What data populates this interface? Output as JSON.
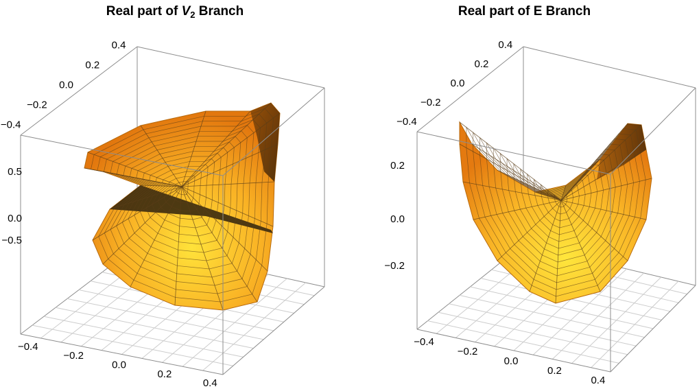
{
  "chart_data": [
    {
      "type": "surface3d",
      "title_main": "Real part of ",
      "title_var": "V",
      "title_sub": "2",
      "title_end": " Branch",
      "x_ticks": [
        "−0.4",
        "−0.2",
        "0.0",
        "0.2",
        "0.4"
      ],
      "y_ticks": [
        "−0.4",
        "−0.2",
        "0.0",
        "0.2",
        "0.4"
      ],
      "z_ticks": [
        "−0.5",
        "0.0",
        "0.5"
      ],
      "xlim": [
        -0.45,
        0.45
      ],
      "ylim": [
        -0.45,
        0.45
      ],
      "zlim": [
        -0.95,
        0.95
      ],
      "mesh": "polar",
      "surface_color": "#f7a21c"
    },
    {
      "type": "surface3d",
      "title_main": "Real part of E Branch",
      "x_ticks": [
        "−0.4",
        "−0.2",
        "0.0",
        "0.2",
        "0.4"
      ],
      "y_ticks": [
        "−0.4",
        "−0.2",
        "0.0",
        "0.2",
        "0.4"
      ],
      "z_ticks": [
        "−0.2",
        "0.0",
        "0.2"
      ],
      "xlim": [
        -0.45,
        0.45
      ],
      "ylim": [
        -0.45,
        0.45
      ],
      "zlim": [
        -0.33,
        0.33
      ],
      "mesh": "polar",
      "surface_color": "#f7a21c"
    }
  ]
}
